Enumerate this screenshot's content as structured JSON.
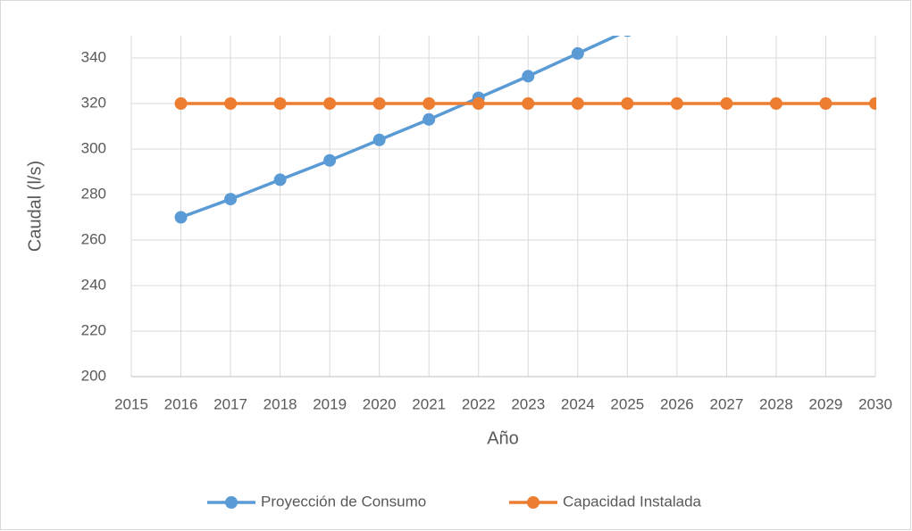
{
  "chart_data": {
    "type": "line",
    "xlabel": "Año",
    "ylabel": "Caudal (l/s)",
    "x": [
      2016,
      2017,
      2018,
      2019,
      2020,
      2021,
      2022,
      2023,
      2024,
      2025,
      2026,
      2027,
      2028,
      2029,
      2030
    ],
    "series": [
      {
        "name": "Proyección de Consumo",
        "color": "#5b9bd5",
        "values": [
          270,
          278,
          286.5,
          295,
          304,
          313,
          322.5,
          332,
          342,
          352,
          null,
          null,
          null,
          null,
          null
        ]
      },
      {
        "name": "Capacidad Instalada",
        "color": "#ed7d31",
        "values": [
          320,
          320,
          320,
          320,
          320,
          320,
          320,
          320,
          320,
          320,
          320,
          320,
          320,
          320,
          320
        ]
      }
    ],
    "xlim": [
      2015,
      2030
    ],
    "xticks": [
      2015,
      2016,
      2017,
      2018,
      2019,
      2020,
      2021,
      2022,
      2023,
      2024,
      2025,
      2026,
      2027,
      2028,
      2029,
      2030
    ],
    "ylim": [
      200,
      350
    ],
    "yticks": [
      200,
      220,
      240,
      260,
      280,
      300,
      320,
      340
    ],
    "grid": true,
    "legend": "bottom"
  }
}
